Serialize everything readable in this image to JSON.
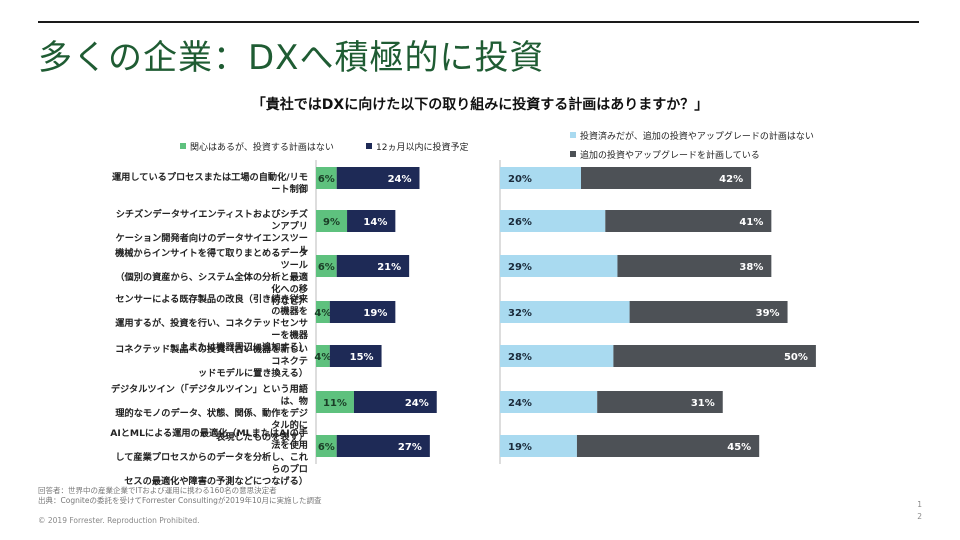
{
  "slide": {
    "title": "多くの企業：DXへ積極的に投資",
    "footnote_respondents": "回答者：世界中の産業企業でITおよび運用に携わる160名の意思決定者",
    "footnote_source": "出典：Cogniteの委託を受けてForrester Consultingが2019年10月に実施した調査",
    "copyright": "© 2019 Forrester. Reproduction Prohibited.",
    "page_number_line1": "1",
    "page_number_line2": "2"
  },
  "colors": {
    "title_green": "#1f5c33",
    "left_light": "#5ec17e",
    "left_dark": "#1e2a56",
    "right_light": "#a9daf0",
    "right_dark": "#4d5156"
  },
  "chart_data": {
    "type": "bar",
    "orientation": "horizontal",
    "stacked": true,
    "title": "「貴社ではDXに向けた以下の取り組みに投資する計画はありますか？」",
    "categories": [
      "運用しているプロセスまたは工場の自動化/リモート制御",
      "シチズンデータサイエンティストおよびシチズンアプリケーション開発者向けのデータサイエンスツール",
      "機械からインサイトを得て取りまとめるデータツール（個別の資産から、システム全体の分析と最適化への移行など）",
      "センサーによる既存製品の改良（引き続き従来の機器を運用するが、投資を行い、コネクテッドセンサーを機器上または機器周辺に追加する）",
      "コネクテッド製品への投資（古い機器を新しいコネクテッドモデルに置き換える）",
      "デジタルツイン（「デジタルツイン」という用語は、物理的なモノのデータ、状態、関係、動作をデジタル的に表現したものを表す）",
      "AIとMLによる運用の最適化（MLまたはAIの手法を使用して産業プロセスからのデータを分析し、これらのプロセスの最適化や障害の予測などにつなげる）"
    ],
    "category_lines": [
      [
        "運用しているプロセスまたは工場の自動化/リモート制御"
      ],
      [
        "シチズンデータサイエンティストおよびシチズンアプリ",
        "ケーション開発者向けのデータサイエンスツール"
      ],
      [
        "機械からインサイトを得て取りまとめるデータツール",
        "（個別の資産から、システム全体の分析と最適化への移",
        "行など）"
      ],
      [
        "センサーによる既存製品の改良（引き続き従来の機器を",
        "運用するが、投資を行い、コネクテッドセンサーを機器",
        "上または機器周辺に追加する）"
      ],
      [
        "コネクテッド製品への投資（古い機器を新しいコネクテ",
        "ッドモデルに置き換える）"
      ],
      [
        "デジタルツイン（「デジタルツイン」という用語は、物",
        "理的なモノのデータ、状態、関係、動作をデジタル的に",
        "表現したものを表す）"
      ],
      [
        "AIとMLによる運用の最適化（MLまたはAIの手法を使用",
        "して産業プロセスからのデータを分析し、これらのプロ",
        "セスの最適化や障害の予測などにつなげる）"
      ]
    ],
    "panels": [
      {
        "series": [
          {
            "name": "関心はあるが、投資する計画はない",
            "values": [
              6,
              9,
              6,
              4,
              4,
              11,
              6
            ]
          },
          {
            "name": "12ヵ月以内に投資予定",
            "values": [
              24,
              14,
              21,
              19,
              15,
              24,
              27
            ]
          }
        ]
      },
      {
        "series": [
          {
            "name": "投資済みだが、追加の投資やアップグレードの計画はない",
            "values": [
              20,
              26,
              29,
              32,
              28,
              24,
              19
            ]
          },
          {
            "name": "追加の投資やアップグレードを計画している",
            "values": [
              42,
              41,
              38,
              39,
              50,
              31,
              45
            ]
          }
        ]
      }
    ],
    "value_suffix": "%",
    "legend_position": "top",
    "grid": false
  }
}
